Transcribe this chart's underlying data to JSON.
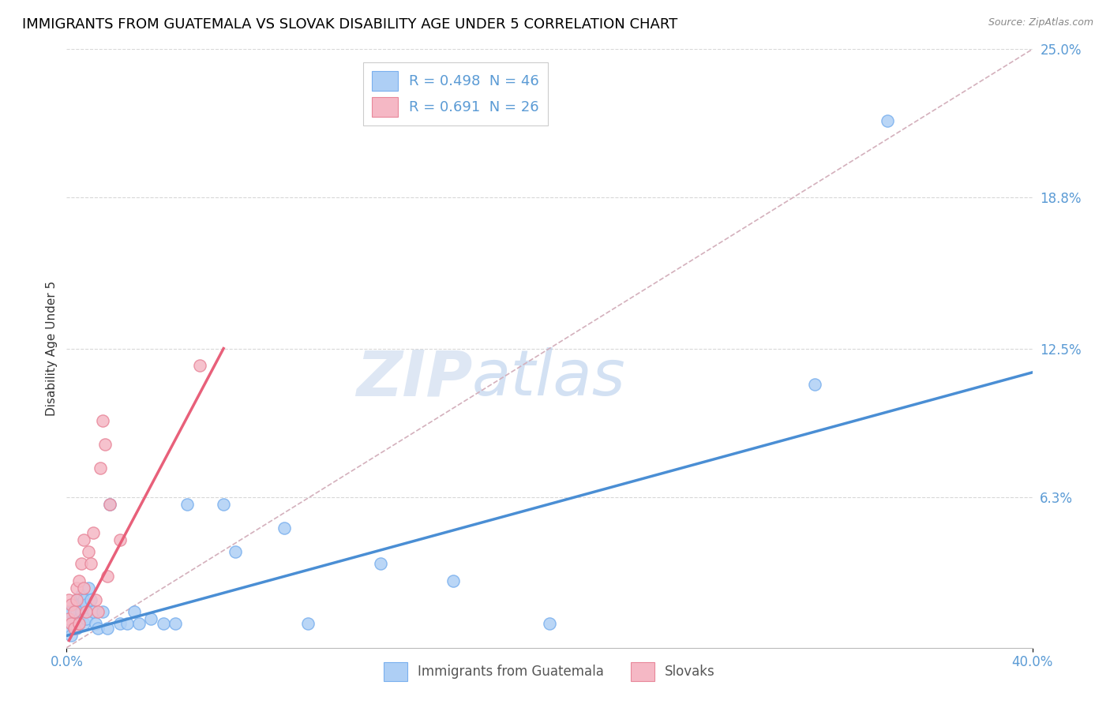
{
  "title": "IMMIGRANTS FROM GUATEMALA VS SLOVAK DISABILITY AGE UNDER 5 CORRELATION CHART",
  "source": "Source: ZipAtlas.com",
  "ylabel": "Disability Age Under 5",
  "xlim": [
    0.0,
    0.4
  ],
  "ylim": [
    0.0,
    0.25
  ],
  "xtick_labels": [
    "0.0%",
    "40.0%"
  ],
  "xtick_vals": [
    0.0,
    0.4
  ],
  "ytick_labels": [
    "25.0%",
    "18.8%",
    "12.5%",
    "6.3%"
  ],
  "ytick_vals": [
    0.25,
    0.188,
    0.125,
    0.063
  ],
  "watermark": "ZIPatlas",
  "legend_r_label1": "R = 0.498",
  "legend_n_label1": "N = 46",
  "legend_r_label2": "R = 0.691",
  "legend_n_label2": "N = 26",
  "guatemala_x": [
    0.001,
    0.001,
    0.001,
    0.002,
    0.002,
    0.002,
    0.003,
    0.003,
    0.003,
    0.004,
    0.004,
    0.004,
    0.005,
    0.005,
    0.005,
    0.006,
    0.006,
    0.007,
    0.007,
    0.008,
    0.008,
    0.009,
    0.01,
    0.011,
    0.012,
    0.013,
    0.015,
    0.017,
    0.018,
    0.022,
    0.025,
    0.028,
    0.03,
    0.035,
    0.04,
    0.045,
    0.05,
    0.065,
    0.07,
    0.09,
    0.1,
    0.13,
    0.16,
    0.2,
    0.31,
    0.34
  ],
  "guatemala_y": [
    0.008,
    0.012,
    0.015,
    0.01,
    0.015,
    0.005,
    0.01,
    0.012,
    0.018,
    0.008,
    0.015,
    0.02,
    0.01,
    0.012,
    0.018,
    0.015,
    0.022,
    0.01,
    0.02,
    0.012,
    0.018,
    0.025,
    0.02,
    0.015,
    0.01,
    0.008,
    0.015,
    0.008,
    0.06,
    0.01,
    0.01,
    0.015,
    0.01,
    0.012,
    0.01,
    0.01,
    0.06,
    0.06,
    0.04,
    0.05,
    0.01,
    0.035,
    0.028,
    0.01,
    0.11,
    0.22
  ],
  "slovak_x": [
    0.001,
    0.001,
    0.002,
    0.002,
    0.003,
    0.003,
    0.004,
    0.004,
    0.005,
    0.005,
    0.006,
    0.007,
    0.007,
    0.008,
    0.009,
    0.01,
    0.011,
    0.012,
    0.013,
    0.014,
    0.015,
    0.016,
    0.017,
    0.018,
    0.022,
    0.055
  ],
  "slovak_y": [
    0.012,
    0.02,
    0.01,
    0.018,
    0.008,
    0.015,
    0.02,
    0.025,
    0.01,
    0.028,
    0.035,
    0.025,
    0.045,
    0.015,
    0.04,
    0.035,
    0.048,
    0.02,
    0.015,
    0.075,
    0.095,
    0.085,
    0.03,
    0.06,
    0.045,
    0.118
  ],
  "blue_line_x": [
    0.0,
    0.4
  ],
  "blue_line_y": [
    0.005,
    0.115
  ],
  "pink_line_x": [
    0.001,
    0.065
  ],
  "pink_line_y": [
    0.003,
    0.125
  ],
  "dash_line_x": [
    0.0,
    0.4
  ],
  "dash_line_y": [
    0.0,
    0.25
  ],
  "scatter_blue_color": "#aecff5",
  "scatter_pink_color": "#f5b8c5",
  "scatter_blue_edge": "#7ab0ee",
  "scatter_pink_edge": "#e8879a",
  "blue_line_color": "#4a8ed4",
  "pink_line_color": "#e8607a",
  "dash_line_color": "#d4b0bc",
  "grid_color": "#d8d8d8",
  "tick_color": "#5b9bd5",
  "title_fontsize": 13,
  "axis_label_fontsize": 11,
  "tick_fontsize": 12
}
